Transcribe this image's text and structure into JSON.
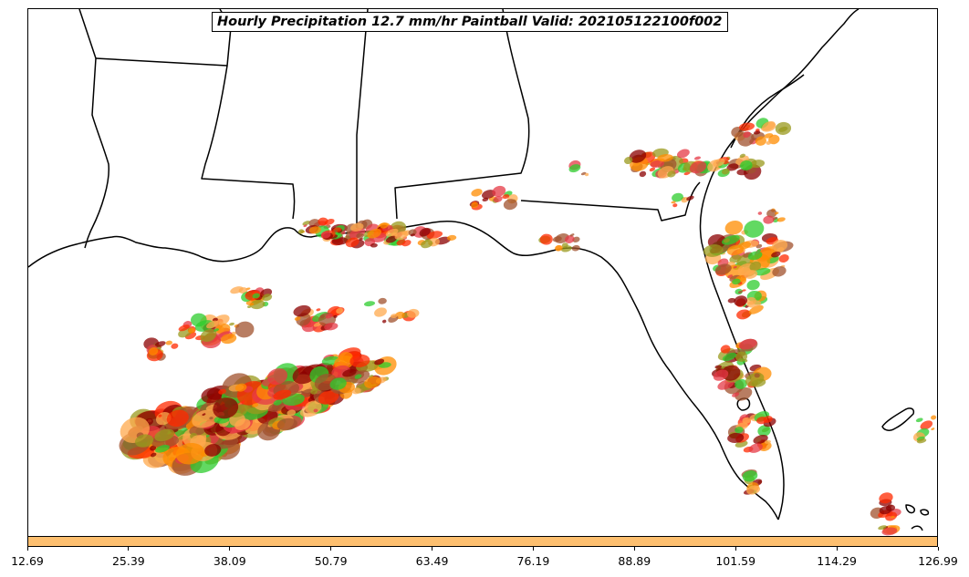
{
  "title": "Hourly Precipitation 12.7 mm/hr Paintball Valid: 202105122100f002",
  "colorbar": {
    "color": "#fdbf6f",
    "ticks": [
      "12.69",
      "25.39",
      "38.09",
      "50.79",
      "63.49",
      "76.19",
      "88.89",
      "101.59",
      "114.29",
      "126.99"
    ]
  },
  "colors": {
    "member_colors": [
      "#ff8c00",
      "#ff2a00",
      "#8b0000",
      "#2ecc2e",
      "#9a9a1e",
      "#a0522d",
      "#ffa94d",
      "#e63946"
    ]
  }
}
